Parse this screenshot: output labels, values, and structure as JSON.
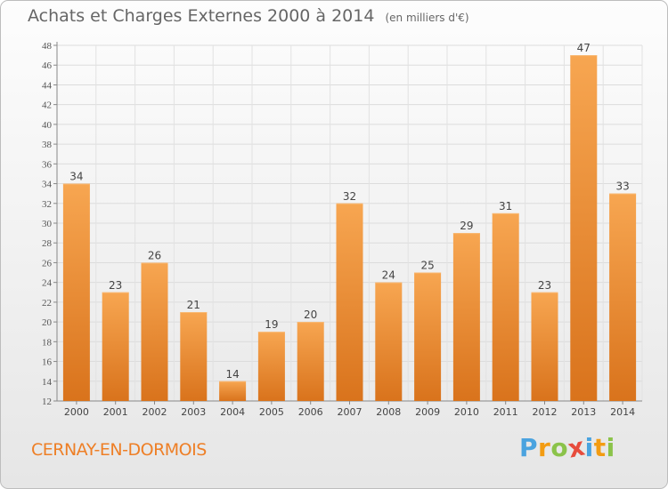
{
  "header": {
    "title": "Achats et Charges Externes 2000 à 2014",
    "subtitle": "(en milliers d'€)"
  },
  "footer": {
    "city": "CERNAY-EN-DORMOIS",
    "brand": "Proxiti",
    "brand_letters": [
      {
        "char": "P",
        "color": "#4aa3df"
      },
      {
        "char": "r",
        "color": "#f39c12"
      },
      {
        "char": "o",
        "color": "#8bc34a"
      },
      {
        "char": "x",
        "color": "#e74c3c"
      },
      {
        "char": "i",
        "color": "#4aa3df"
      },
      {
        "char": "t",
        "color": "#f39c12"
      },
      {
        "char": "i",
        "color": "#8bc34a"
      }
    ]
  },
  "colors": {
    "bar_light": "#f7a651",
    "bar_dark": "#d9731c",
    "title": "#666666",
    "city": "#ee7f26"
  },
  "chart_data": {
    "type": "bar",
    "title": "Achats et Charges Externes 2000 à 2014",
    "subtitle": "(en milliers d'€)",
    "categories": [
      "2000",
      "2001",
      "2002",
      "2003",
      "2004",
      "2005",
      "2006",
      "2007",
      "2008",
      "2009",
      "2010",
      "2011",
      "2012",
      "2013",
      "2014"
    ],
    "values": [
      34,
      23,
      26,
      21,
      14,
      19,
      20,
      32,
      24,
      25,
      29,
      31,
      23,
      47,
      33
    ],
    "ylim": [
      12,
      48
    ],
    "yticks": [
      12,
      14,
      16,
      18,
      20,
      22,
      24,
      26,
      28,
      30,
      32,
      34,
      36,
      38,
      40,
      42,
      44,
      46,
      48
    ],
    "grid": true,
    "data_labels": true
  }
}
